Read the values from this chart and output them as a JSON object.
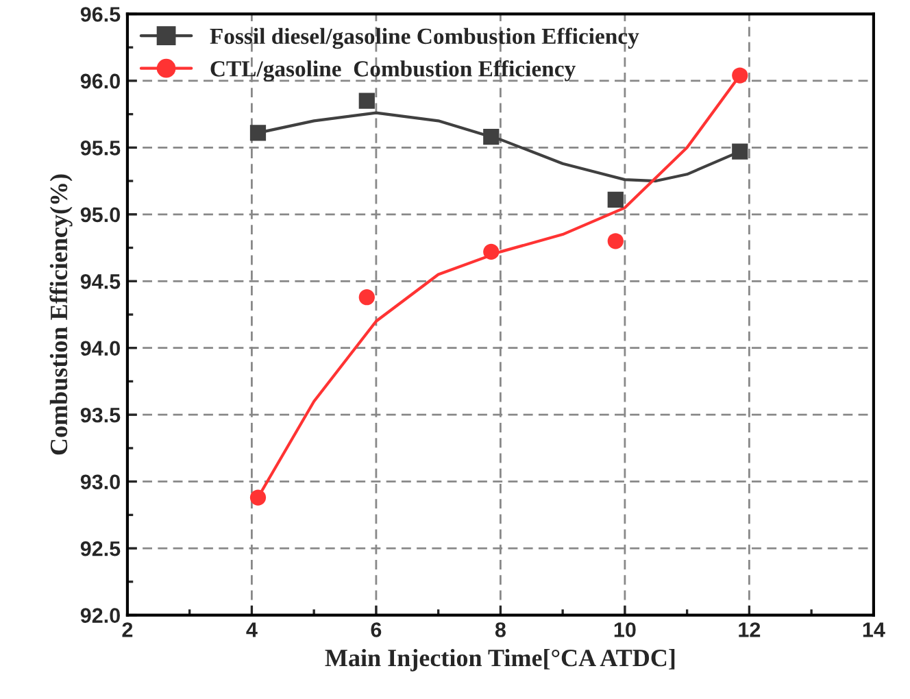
{
  "chart_data": {
    "type": "scatter",
    "xlabel": "Main Injection Time[°CA ATDC]",
    "ylabel": "Combustion Efficiency(%)",
    "xlim": [
      2,
      14
    ],
    "xticks": [
      2,
      4,
      6,
      8,
      10,
      12,
      14
    ],
    "ylim": [
      92.0,
      96.5
    ],
    "yticks": [
      {
        "value": 92.0,
        "label": "92.0"
      },
      {
        "value": 92.5,
        "label": "92.5"
      },
      {
        "value": 93.0,
        "label": "93.0"
      },
      {
        "value": 93.5,
        "label": "93.5"
      },
      {
        "value": 94.0,
        "label": "94.0"
      },
      {
        "value": 94.5,
        "label": "94.5"
      },
      {
        "value": 95.0,
        "label": "95.0"
      },
      {
        "value": 95.5,
        "label": "95.5"
      },
      {
        "value": 96.0,
        "label": "96.0"
      },
      {
        "value": 96.5,
        "label": "96.5"
      }
    ],
    "grid": true,
    "legend": "top left",
    "series": [
      {
        "name": "Fossil diesel/gasoline Combustion Efficiency",
        "color": "#404040",
        "marker": "square",
        "x": [
          4.1,
          5.85,
          7.85,
          9.85,
          11.85
        ],
        "values": [
          95.61,
          95.85,
          95.58,
          95.11,
          95.47
        ]
      },
      {
        "name": "CTL/gasoline  Combustion Efficiency",
        "color": "#ff3333",
        "marker": "circle",
        "x": [
          4.1,
          5.85,
          7.85,
          9.85,
          11.85
        ],
        "values": [
          92.88,
          94.38,
          94.72,
          94.8,
          96.04
        ]
      },
      {
        "type": "line",
        "color": "#404040",
        "line_style": "solid",
        "x": [
          4.1,
          5,
          6,
          7,
          8,
          9,
          10,
          10.5,
          11,
          11.85
        ],
        "values": [
          95.61,
          95.7,
          95.76,
          95.7,
          95.56,
          95.38,
          95.26,
          95.25,
          95.3,
          95.47
        ]
      },
      {
        "type": "line",
        "color": "#ff3333",
        "line_style": "solid",
        "x": [
          4.1,
          5,
          6,
          7,
          8,
          9,
          10,
          11,
          11.85
        ],
        "values": [
          92.88,
          93.6,
          94.2,
          94.55,
          94.72,
          94.85,
          95.05,
          95.5,
          96.04
        ]
      }
    ]
  }
}
